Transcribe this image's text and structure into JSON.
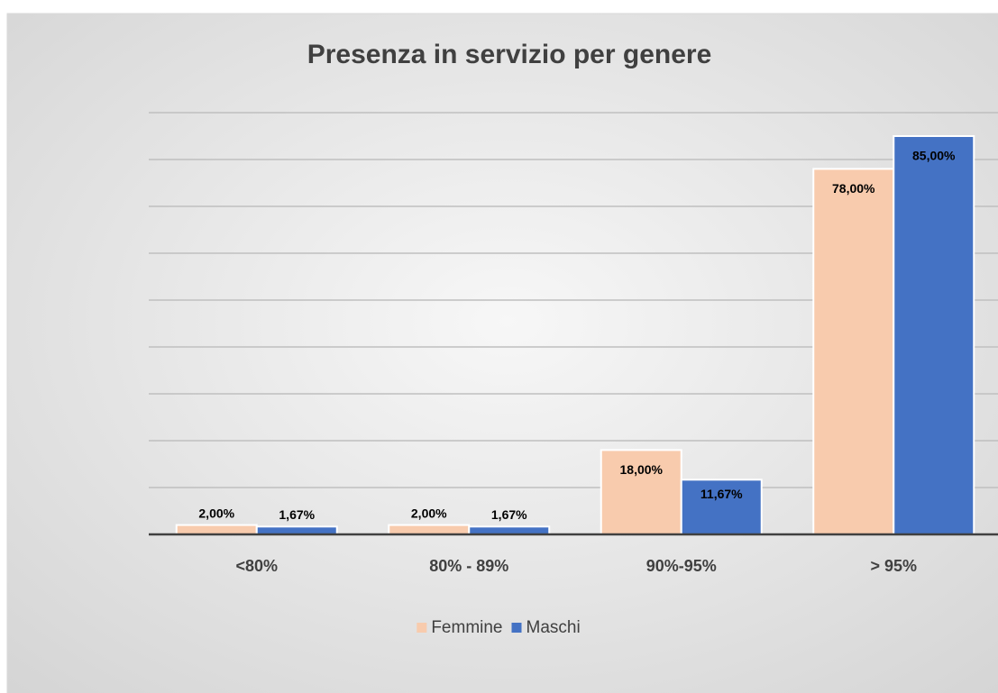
{
  "chart_data": {
    "type": "bar",
    "title": "Presenza in servizio per genere",
    "categories": [
      "<80%",
      "80% - 89%",
      "90%-95%",
      "> 95%"
    ],
    "series": [
      {
        "name": "Femmine",
        "color": "#f8cbad",
        "values": [
          2,
          2,
          18,
          78
        ],
        "value_labels": [
          "2,00%",
          "2,00%",
          "18,00%",
          "78,00%"
        ]
      },
      {
        "name": "Maschi",
        "color": "#4472c4",
        "values": [
          1.67,
          1.67,
          11.67,
          85
        ],
        "value_labels": [
          "1,67%",
          "1,67%",
          "11,67%",
          "85,00%"
        ]
      }
    ],
    "ylim": [
      0,
      90
    ],
    "yticks": [
      0,
      10,
      20,
      30,
      40,
      50,
      60,
      70,
      80,
      90
    ],
    "grid": true,
    "legend": "bottom"
  }
}
